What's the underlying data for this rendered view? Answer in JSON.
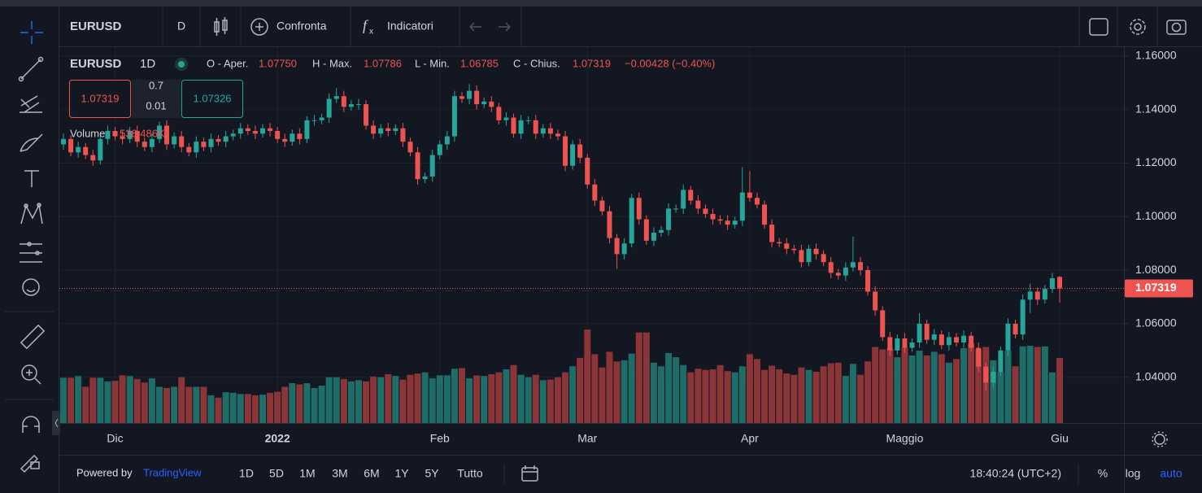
{
  "toolbar": {
    "symbol": "EURUSD",
    "interval": "D",
    "compare": "Confronta",
    "indicators": "Indicatori"
  },
  "chart_data": {
    "type": "candlestick",
    "legend": {
      "symbol": "EURUSD",
      "interval": "1D",
      "open_label": "O - Aper.",
      "open": "1.07750",
      "high_label": "H - Max.",
      "high": "1.07786",
      "low_label": "L - Min.",
      "low": "1.06785",
      "close_label": "C - Chius.",
      "close": "1.07319",
      "change": "−0.00428 (−0.40%)",
      "volume_label": "Volume",
      "volume_value": "538.486K"
    },
    "trade": {
      "sell": "1.07319",
      "spread": "0.7",
      "quantity": "0.01",
      "buy": "1.07326"
    },
    "up_color": "#26a69a",
    "down_color": "#ef5350",
    "volume_up_color": "#1f6d68",
    "volume_down_color": "#8c3538",
    "ylim": [
      1.0229,
      1.1636
    ],
    "yticks": [
      {
        "value": 1.04,
        "label": "1.04000"
      },
      {
        "value": 1.06,
        "label": "1.06000"
      },
      {
        "value": 1.08,
        "label": "1.08000"
      },
      {
        "value": 1.1,
        "label": "1.10000"
      },
      {
        "value": 1.12,
        "label": "1.12000"
      },
      {
        "value": 1.14,
        "label": "1.14000"
      },
      {
        "value": 1.16,
        "label": "1.16000"
      }
    ],
    "grid": true,
    "categories": [
      null,
      null,
      null,
      null,
      null,
      null,
      null,
      "Dic",
      null,
      null,
      null,
      null,
      null,
      null,
      null,
      null,
      null,
      null,
      null,
      null,
      null,
      null,
      null,
      null,
      null,
      null,
      null,
      null,
      null,
      "2022",
      null,
      null,
      null,
      null,
      null,
      null,
      null,
      null,
      null,
      null,
      null,
      null,
      null,
      null,
      null,
      null,
      null,
      null,
      null,
      null,
      null,
      "Feb",
      null,
      null,
      null,
      null,
      null,
      null,
      null,
      null,
      null,
      null,
      null,
      null,
      null,
      null,
      null,
      null,
      null,
      null,
      null,
      "Mar",
      null,
      null,
      null,
      null,
      null,
      null,
      null,
      null,
      null,
      null,
      null,
      null,
      null,
      null,
      null,
      null,
      null,
      null,
      null,
      null,
      null,
      "Apr",
      null,
      null,
      null,
      null,
      null,
      null,
      null,
      null,
      null,
      null,
      null,
      null,
      null,
      null,
      null,
      null,
      null,
      null,
      null,
      null,
      "Maggio",
      null,
      null,
      null,
      null,
      null,
      null,
      null,
      null,
      null,
      null,
      null,
      null,
      null,
      null,
      null,
      null,
      null,
      null,
      null,
      null,
      "Giu"
    ],
    "ohlc": [
      [
        1.127,
        1.131,
        1.125,
        1.129
      ],
      [
        1.129,
        1.1305,
        1.1225,
        1.124
      ],
      [
        1.124,
        1.128,
        1.122,
        1.126
      ],
      [
        1.126,
        1.1275,
        1.1215,
        1.123
      ],
      [
        1.123,
        1.125,
        1.119,
        1.121
      ],
      [
        1.121,
        1.1305,
        1.1195,
        1.129
      ],
      [
        1.129,
        1.134,
        1.127,
        1.132
      ],
      [
        1.132,
        1.1335,
        1.1285,
        1.13
      ],
      [
        1.13,
        1.132,
        1.127,
        1.129
      ],
      [
        1.129,
        1.1335,
        1.1275,
        1.132
      ],
      [
        1.132,
        1.134,
        1.126,
        1.128
      ],
      [
        1.128,
        1.1295,
        1.1245,
        1.126
      ],
      [
        1.126,
        1.131,
        1.124,
        1.129
      ],
      [
        1.129,
        1.1355,
        1.1275,
        1.134
      ],
      [
        1.134,
        1.136,
        1.125,
        1.127
      ],
      [
        1.127,
        1.1315,
        1.1255,
        1.13
      ],
      [
        1.13,
        1.132,
        1.124,
        1.126
      ],
      [
        1.126,
        1.1275,
        1.1225,
        1.124
      ],
      [
        1.124,
        1.13,
        1.122,
        1.128
      ],
      [
        1.128,
        1.1295,
        1.1245,
        1.126
      ],
      [
        1.126,
        1.131,
        1.124,
        1.129
      ],
      [
        1.129,
        1.1305,
        1.1265,
        1.128
      ],
      [
        1.128,
        1.132,
        1.126,
        1.13
      ],
      [
        1.13,
        1.1325,
        1.1285,
        1.131
      ],
      [
        1.131,
        1.135,
        1.129,
        1.133
      ],
      [
        1.133,
        1.1345,
        1.1305,
        1.132
      ],
      [
        1.132,
        1.134,
        1.129,
        1.131
      ],
      [
        1.131,
        1.1345,
        1.1295,
        1.133
      ],
      [
        1.133,
        1.135,
        1.13,
        1.132
      ],
      [
        1.132,
        1.1335,
        1.1275,
        1.129
      ],
      [
        1.129,
        1.131,
        1.126,
        1.128
      ],
      [
        1.128,
        1.1325,
        1.1265,
        1.131
      ],
      [
        1.131,
        1.133,
        1.127,
        1.129
      ],
      [
        1.129,
        1.1375,
        1.1275,
        1.136
      ],
      [
        1.136,
        1.138,
        1.134,
        1.136
      ],
      [
        1.136,
        1.1385,
        1.1345,
        1.137
      ],
      [
        1.137,
        1.146,
        1.135,
        1.144
      ],
      [
        1.144,
        1.148,
        1.1425,
        1.145
      ],
      [
        1.145,
        1.147,
        1.139,
        1.141
      ],
      [
        1.141,
        1.1435,
        1.1395,
        1.142
      ],
      [
        1.142,
        1.144,
        1.14,
        1.142
      ],
      [
        1.142,
        1.1435,
        1.1325,
        1.134
      ],
      [
        1.134,
        1.136,
        1.129,
        1.131
      ],
      [
        1.131,
        1.1345,
        1.1295,
        1.133
      ],
      [
        1.133,
        1.135,
        1.13,
        1.132
      ],
      [
        1.132,
        1.1345,
        1.1305,
        1.133
      ],
      [
        1.133,
        1.135,
        1.126,
        1.128
      ],
      [
        1.128,
        1.1295,
        1.1225,
        1.124
      ],
      [
        1.124,
        1.126,
        1.112,
        1.114
      ],
      [
        1.114,
        1.1165,
        1.1125,
        1.115
      ],
      [
        1.115,
        1.125,
        1.113,
        1.123
      ],
      [
        1.123,
        1.1285,
        1.1215,
        1.127
      ],
      [
        1.127,
        1.132,
        1.125,
        1.13
      ],
      [
        1.13,
        1.147,
        1.128,
        1.145
      ],
      [
        1.145,
        1.1465,
        1.1425,
        1.144
      ],
      [
        1.144,
        1.1495,
        1.142,
        1.147
      ],
      [
        1.147,
        1.149,
        1.14,
        1.142
      ],
      [
        1.142,
        1.1445,
        1.1405,
        1.143
      ],
      [
        1.143,
        1.145,
        1.139,
        1.141
      ],
      [
        1.141,
        1.1425,
        1.1345,
        1.136
      ],
      [
        1.136,
        1.139,
        1.134,
        1.137
      ],
      [
        1.137,
        1.1385,
        1.1295,
        1.131
      ],
      [
        1.131,
        1.138,
        1.129,
        1.136
      ],
      [
        1.136,
        1.1375,
        1.1345,
        1.136
      ],
      [
        1.136,
        1.138,
        1.129,
        1.131
      ],
      [
        1.131,
        1.1345,
        1.1295,
        1.133
      ],
      [
        1.133,
        1.135,
        1.129,
        1.131
      ],
      [
        1.131,
        1.1325,
        1.1285,
        1.13
      ],
      [
        1.13,
        1.132,
        1.117,
        1.119
      ],
      [
        1.119,
        1.1285,
        1.1175,
        1.127
      ],
      [
        1.127,
        1.129,
        1.12,
        1.122
      ],
      [
        1.122,
        1.1235,
        1.1105,
        1.112
      ],
      [
        1.112,
        1.114,
        1.104,
        1.106
      ],
      [
        1.106,
        1.1075,
        1.1005,
        1.102
      ],
      [
        1.102,
        1.104,
        1.09,
        1.092
      ],
      [
        1.092,
        1.0935,
        1.0805,
        1.086
      ],
      [
        1.086,
        1.092,
        1.084,
        1.09
      ],
      [
        1.09,
        1.1085,
        1.0885,
        1.107
      ],
      [
        1.107,
        1.109,
        1.097,
        1.099
      ],
      [
        1.099,
        1.1005,
        1.0895,
        1.091
      ],
      [
        1.091,
        1.096,
        1.089,
        1.094
      ],
      [
        1.094,
        1.0965,
        1.0925,
        1.095
      ],
      [
        1.095,
        1.105,
        1.093,
        1.103
      ],
      [
        1.103,
        1.1045,
        1.1015,
        1.103
      ],
      [
        1.103,
        1.112,
        1.101,
        1.11
      ],
      [
        1.11,
        1.1115,
        1.1045,
        1.106
      ],
      [
        1.106,
        1.108,
        1.101,
        1.103
      ],
      [
        1.103,
        1.1045,
        1.0995,
        1.101
      ],
      [
        1.101,
        1.103,
        1.097,
        1.099
      ],
      [
        1.099,
        1.1005,
        1.097,
        1.0985
      ],
      [
        1.0985,
        1.1005,
        1.095,
        1.097
      ],
      [
        1.097,
        1.1,
        1.0955,
        1.0985
      ],
      [
        1.0985,
        1.1185,
        1.0965,
        1.109
      ],
      [
        1.109,
        1.117,
        1.1055,
        1.107
      ],
      [
        1.107,
        1.109,
        1.103,
        1.1045
      ],
      [
        1.1045,
        1.106,
        1.0955,
        1.097
      ],
      [
        1.097,
        1.099,
        1.0885,
        1.0905
      ],
      [
        1.0905,
        1.092,
        1.0885,
        1.09
      ],
      [
        1.09,
        1.092,
        1.086,
        1.088
      ],
      [
        1.088,
        1.0895,
        1.086,
        1.0875
      ],
      [
        1.0875,
        1.0895,
        1.081,
        1.083
      ],
      [
        1.083,
        1.0895,
        1.0815,
        1.088
      ],
      [
        1.088,
        1.09,
        1.084,
        1.086
      ],
      [
        1.086,
        1.0875,
        1.0815,
        1.083
      ],
      [
        1.083,
        1.085,
        1.077,
        1.079
      ],
      [
        1.079,
        1.0805,
        1.0765,
        1.078
      ],
      [
        1.078,
        1.083,
        1.076,
        1.081
      ],
      [
        1.081,
        1.0925,
        1.0795,
        1.083
      ],
      [
        1.083,
        1.085,
        1.078,
        1.08
      ],
      [
        1.08,
        1.0815,
        1.0705,
        1.072
      ],
      [
        1.072,
        1.074,
        1.063,
        1.065
      ],
      [
        1.065,
        1.0665,
        1.0535,
        1.055
      ],
      [
        1.055,
        1.057,
        1.048,
        1.05
      ],
      [
        1.05,
        1.056,
        1.0485,
        1.0545
      ],
      [
        1.0545,
        1.0565,
        1.049,
        1.051
      ],
      [
        1.051,
        1.0545,
        1.0495,
        1.053
      ],
      [
        1.053,
        1.064,
        1.051,
        1.06
      ],
      [
        1.06,
        1.0615,
        1.0525,
        1.054
      ],
      [
        1.054,
        1.058,
        1.052,
        1.056
      ],
      [
        1.056,
        1.0575,
        1.0505,
        1.052
      ],
      [
        1.052,
        1.057,
        1.05,
        1.055
      ],
      [
        1.055,
        1.0565,
        1.0515,
        1.053
      ],
      [
        1.053,
        1.0575,
        1.051,
        1.0555
      ],
      [
        1.0555,
        1.057,
        1.0495,
        1.051
      ],
      [
        1.051,
        1.053,
        1.042,
        1.044
      ],
      [
        1.044,
        1.0455,
        1.035,
        1.038
      ],
      [
        1.038,
        1.044,
        1.036,
        1.042
      ],
      [
        1.042,
        1.0515,
        1.0405,
        1.05
      ],
      [
        1.05,
        1.062,
        1.048,
        1.06
      ],
      [
        1.06,
        1.0615,
        1.0545,
        1.056
      ],
      [
        1.056,
        1.071,
        1.054,
        1.069
      ],
      [
        1.069,
        1.075,
        1.064,
        1.072
      ],
      [
        1.072,
        1.0735,
        1.067,
        1.069
      ],
      [
        1.069,
        1.0745,
        1.0675,
        1.073
      ],
      [
        1.073,
        1.079,
        1.0715,
        1.077
      ],
      [
        1.0775,
        1.07786,
        1.06785,
        1.07319
      ]
    ],
    "volume": [
      375000,
      375000,
      390000,
      300000,
      375000,
      375000,
      345000,
      350000,
      395000,
      390000,
      365000,
      335000,
      370000,
      300000,
      290000,
      300000,
      380000,
      300000,
      300000,
      300000,
      230000,
      210000,
      255000,
      250000,
      240000,
      240000,
      230000,
      235000,
      250000,
      260000,
      300000,
      330000,
      320000,
      330000,
      290000,
      310000,
      380000,
      380000,
      365000,
      345000,
      355000,
      345000,
      385000,
      380000,
      405000,
      390000,
      360000,
      400000,
      410000,
      420000,
      370000,
      395000,
      395000,
      450000,
      455000,
      370000,
      395000,
      390000,
      405000,
      420000,
      445000,
      480000,
      400000,
      380000,
      400000,
      355000,
      360000,
      380000,
      420000,
      470000,
      540000,
      775000,
      570000,
      460000,
      590000,
      510000,
      520000,
      575000,
      750000,
      750000,
      500000,
      470000,
      580000,
      545000,
      480000,
      420000,
      450000,
      440000,
      445000,
      480000,
      430000,
      420000,
      470000,
      570000,
      530000,
      440000,
      475000,
      445000,
      410000,
      400000,
      460000,
      440000,
      425000,
      470000,
      495000,
      500000,
      390000,
      490000,
      400000,
      510000,
      630000,
      610000,
      620000,
      545000,
      625000,
      560000,
      600000,
      560000,
      590000,
      570000,
      500000,
      530000,
      620000,
      660000,
      610000,
      630000,
      520000,
      425000,
      600000,
      470000,
      635000,
      640000,
      630000,
      635000,
      420000,
      538486
    ]
  },
  "bottom_bar": {
    "powered_by": "Powered by",
    "brand": "TradingView",
    "ranges": [
      "1D",
      "5D",
      "1M",
      "3M",
      "6M",
      "1Y",
      "5Y",
      "Tutto"
    ],
    "time": "18:40:24 (UTC+2)",
    "percent": "%",
    "log": "log",
    "auto": "auto"
  }
}
